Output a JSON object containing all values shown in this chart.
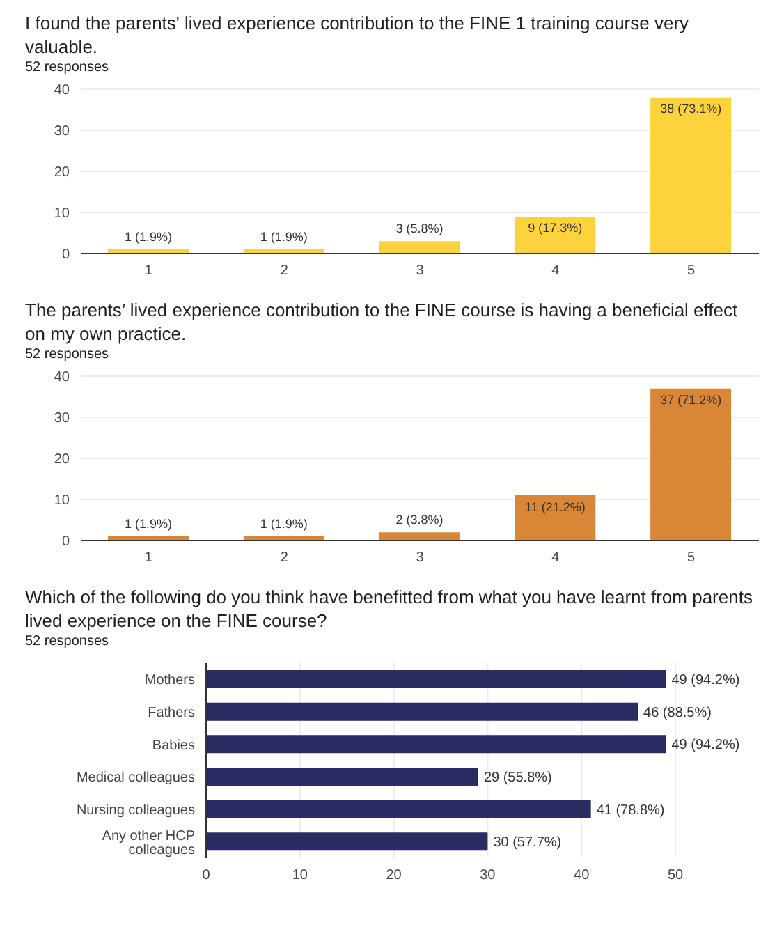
{
  "chart_data": [
    {
      "type": "bar",
      "title": "I found the parents' lived experience contribution to the FINE 1 training course very valuable.",
      "subtitle": "52 responses",
      "categories": [
        "1",
        "2",
        "3",
        "4",
        "5"
      ],
      "values": [
        1,
        1,
        3,
        9,
        38
      ],
      "value_labels": [
        "1 (1.9%)",
        "1 (1.9%)",
        "3 (5.8%)",
        "9 (17.3%)",
        "38 (73.1%)"
      ],
      "color": "#fdd33d",
      "ylim": [
        0,
        40
      ],
      "yticks": [
        0,
        10,
        20,
        30,
        40
      ],
      "grid": "y"
    },
    {
      "type": "bar",
      "title": "The parents’ lived experience contribution to the FINE course is having a beneficial effect on my own practice.",
      "subtitle": "52 responses",
      "categories": [
        "1",
        "2",
        "3",
        "4",
        "5"
      ],
      "values": [
        1,
        1,
        2,
        11,
        37
      ],
      "value_labels": [
        "1 (1.9%)",
        "1 (1.9%)",
        "2 (3.8%)",
        "11 (21.2%)",
        "37 (71.2%)"
      ],
      "color": "#d98736",
      "ylim": [
        0,
        40
      ],
      "yticks": [
        0,
        10,
        20,
        30,
        40
      ],
      "grid": "y"
    },
    {
      "type": "bar",
      "orientation": "horizontal",
      "title": "Which of the following do you think have benefitted from what you have learnt from parents lived experience on the FINE course?",
      "subtitle": "52 responses",
      "categories": [
        "Mothers",
        "Fathers",
        "Babies",
        "Medical colleagues",
        "Nursing colleagues",
        "Any other HCP colleagues"
      ],
      "values": [
        49,
        46,
        49,
        29,
        41,
        30
      ],
      "value_labels": [
        "49 (94.2%)",
        "46 (88.5%)",
        "49 (94.2%)",
        "29 (55.8%)",
        "41 (78.8%)",
        "30 (57.7%)"
      ],
      "color": "#2b2a63",
      "xlim": [
        0,
        50
      ],
      "xticks": [
        0,
        10,
        20,
        30,
        40,
        50
      ],
      "grid": "x"
    }
  ]
}
